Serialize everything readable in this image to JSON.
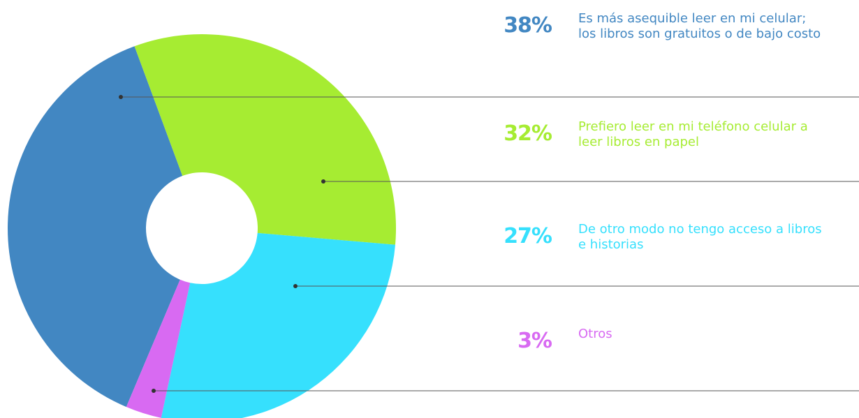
{
  "chart_data": {
    "type": "donut",
    "categories": [
      "Es más asequible leer en mi celular; los libros son gratuitos o de bajo costo",
      "Prefiero leer en mi teléfono celular a leer libros en papel",
      "De otro modo no tengo acceso a libros e historias",
      "Otros"
    ],
    "values": [
      38,
      32,
      27,
      3
    ],
    "value_labels": [
      "38%",
      "32%",
      "27%",
      "3%"
    ],
    "colors": [
      "#4287c2",
      "#a6ec32",
      "#36e0fd",
      "#d86af2"
    ]
  }
}
